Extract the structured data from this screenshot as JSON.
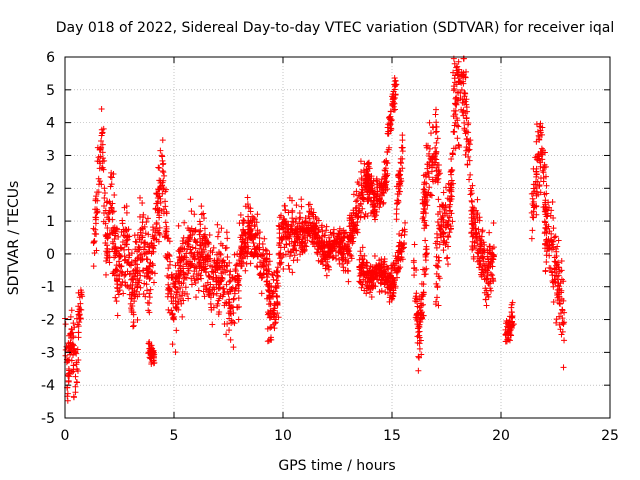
{
  "chart_data": {
    "type": "scatter",
    "title": "Day 018 of 2022, Sidereal Day-to-day VTEC variation (SDTVAR) for receiver iqal",
    "xlabel": "GPS time / hours",
    "ylabel": "SDTVAR / TECUs",
    "xlim": [
      0,
      25
    ],
    "ylim": [
      -5,
      6
    ],
    "xticks": [
      0,
      5,
      10,
      15,
      20,
      25
    ],
    "yticks": [
      -5,
      -4,
      -3,
      -2,
      -1,
      0,
      1,
      2,
      3,
      4,
      5,
      6
    ],
    "grid": true,
    "marker": "plus",
    "color": "#ff0000",
    "series": [
      {
        "name": "SDTVAR",
        "segments": [
          {
            "x0": 0.0,
            "x1": 0.8,
            "profile": [
              [
                0.0,
                -2.0
              ],
              [
                0.1,
                -3.8
              ],
              [
                0.3,
                -2.5
              ],
              [
                0.5,
                -3.6
              ],
              [
                0.7,
                -1.2
              ],
              [
                0.8,
                -1.0
              ]
            ],
            "spread": 1.0
          },
          {
            "x0": 1.3,
            "x1": 2.4,
            "profile": [
              [
                1.3,
                0.3
              ],
              [
                1.6,
                2.6
              ],
              [
                1.7,
                3.3
              ],
              [
                1.9,
                0.5
              ],
              [
                2.1,
                1.6
              ],
              [
                2.4,
                -0.4
              ]
            ],
            "spread": 1.3
          },
          {
            "x0": 2.4,
            "x1": 4.0,
            "profile": [
              [
                2.4,
                -0.5
              ],
              [
                2.8,
                0.2
              ],
              [
                3.1,
                -1.2
              ],
              [
                3.5,
                0.3
              ],
              [
                3.9,
                -0.5
              ],
              [
                4.0,
                0.0
              ]
            ],
            "spread": 1.3
          },
          {
            "x0": 3.8,
            "x1": 4.1,
            "profile": [
              [
                3.8,
                -2.9
              ],
              [
                4.1,
                -3.1
              ]
            ],
            "spread": 0.3
          },
          {
            "x0": 4.0,
            "x1": 4.7,
            "profile": [
              [
                4.0,
                0.0
              ],
              [
                4.3,
                1.5
              ],
              [
                4.5,
                2.5
              ],
              [
                4.7,
                0.3
              ]
            ],
            "spread": 1.2
          },
          {
            "x0": 4.7,
            "x1": 6.2,
            "profile": [
              [
                4.7,
                -0.6
              ],
              [
                5.0,
                -1.6
              ],
              [
                5.3,
                -0.4
              ],
              [
                5.7,
                0.2
              ],
              [
                6.2,
                -0.4
              ]
            ],
            "spread": 1.3
          },
          {
            "x0": 6.2,
            "x1": 8.0,
            "profile": [
              [
                6.2,
                0.3
              ],
              [
                6.7,
                -0.8
              ],
              [
                7.2,
                -0.5
              ],
              [
                7.6,
                -1.3
              ],
              [
                8.0,
                -1.0
              ]
            ],
            "spread": 1.2
          },
          {
            "x0": 8.0,
            "x1": 9.4,
            "profile": [
              [
                8.0,
                0.2
              ],
              [
                8.4,
                0.6
              ],
              [
                8.8,
                0.3
              ],
              [
                9.2,
                -0.4
              ],
              [
                9.4,
                -1.0
              ]
            ],
            "spread": 1.0
          },
          {
            "x0": 9.3,
            "x1": 9.8,
            "profile": [
              [
                9.3,
                -2.0
              ],
              [
                9.6,
                -1.6
              ],
              [
                9.8,
                -1.0
              ]
            ],
            "spread": 1.0
          },
          {
            "x0": 9.8,
            "x1": 11.0,
            "profile": [
              [
                9.8,
                0.3
              ],
              [
                10.2,
                0.8
              ],
              [
                10.6,
                0.4
              ],
              [
                11.0,
                0.8
              ]
            ],
            "spread": 1.0
          },
          {
            "x0": 11.0,
            "x1": 13.0,
            "profile": [
              [
                11.0,
                0.8
              ],
              [
                11.5,
                0.6
              ],
              [
                12.0,
                0.0
              ],
              [
                12.5,
                0.4
              ],
              [
                13.0,
                0.0
              ]
            ],
            "spread": 0.6
          },
          {
            "x0": 13.0,
            "x1": 14.0,
            "profile": [
              [
                13.0,
                0.3
              ],
              [
                13.3,
                1.2
              ],
              [
                13.6,
                1.8
              ],
              [
                14.0,
                2.4
              ]
            ],
            "spread": 0.8
          },
          {
            "x0": 13.8,
            "x1": 14.8,
            "profile": [
              [
                13.8,
                2.5
              ],
              [
                14.2,
                1.5
              ],
              [
                14.5,
                1.8
              ],
              [
                14.8,
                2.6
              ]
            ],
            "spread": 0.6
          },
          {
            "x0": 14.8,
            "x1": 15.2,
            "profile": [
              [
                14.8,
                3.5
              ],
              [
                15.0,
                4.5
              ],
              [
                15.2,
                5.1
              ]
            ],
            "spread": 0.5
          },
          {
            "x0": 13.5,
            "x1": 15.6,
            "profile": [
              [
                13.5,
                -0.4
              ],
              [
                14.0,
                -0.8
              ],
              [
                14.5,
                -0.5
              ],
              [
                15.0,
                -1.0
              ],
              [
                15.6,
                0.6
              ]
            ],
            "spread": 0.5
          },
          {
            "x0": 15.2,
            "x1": 15.5,
            "profile": [
              [
                15.2,
                1.5
              ],
              [
                15.5,
                3.0
              ]
            ],
            "spread": 0.6
          },
          {
            "x0": 16.0,
            "x1": 16.6,
            "profile": [
              [
                16.0,
                -0.5
              ],
              [
                16.2,
                -2.5
              ],
              [
                16.4,
                -1.5
              ],
              [
                16.6,
                0.3
              ]
            ],
            "spread": 1.0
          },
          {
            "x0": 16.4,
            "x1": 17.2,
            "profile": [
              [
                16.4,
                1.0
              ],
              [
                16.7,
                2.8
              ],
              [
                17.0,
                3.3
              ],
              [
                17.2,
                1.8
              ]
            ],
            "spread": 1.2
          },
          {
            "x0": 17.0,
            "x1": 17.8,
            "profile": [
              [
                17.0,
                -0.5
              ],
              [
                17.3,
                1.0
              ],
              [
                17.6,
                0.8
              ],
              [
                17.8,
                2.5
              ]
            ],
            "spread": 1.2
          },
          {
            "x0": 17.8,
            "x1": 18.7,
            "profile": [
              [
                17.8,
                4.5
              ],
              [
                18.1,
                4.8
              ],
              [
                18.3,
                5.0
              ],
              [
                18.6,
                2.5
              ],
              [
                18.7,
                1.0
              ]
            ],
            "spread": 1.5
          },
          {
            "x0": 18.6,
            "x1": 19.7,
            "profile": [
              [
                18.6,
                1.0
              ],
              [
                19.0,
                0.3
              ],
              [
                19.3,
                -0.8
              ],
              [
                19.7,
                0.0
              ]
            ],
            "spread": 1.0
          },
          {
            "x0": 20.2,
            "x1": 20.6,
            "profile": [
              [
                20.2,
                -2.6
              ],
              [
                20.4,
                -2.2
              ],
              [
                20.6,
                -1.8
              ]
            ],
            "spread": 0.5
          },
          {
            "x0": 21.4,
            "x1": 22.1,
            "profile": [
              [
                21.4,
                0.8
              ],
              [
                21.7,
                2.8
              ],
              [
                21.9,
                3.2
              ],
              [
                22.1,
                1.0
              ]
            ],
            "spread": 1.2
          },
          {
            "x0": 22.0,
            "x1": 22.9,
            "profile": [
              [
                22.0,
                1.0
              ],
              [
                22.3,
                0.0
              ],
              [
                22.6,
                -0.8
              ],
              [
                22.9,
                -1.8
              ]
            ],
            "spread": 1.3
          }
        ]
      }
    ]
  }
}
